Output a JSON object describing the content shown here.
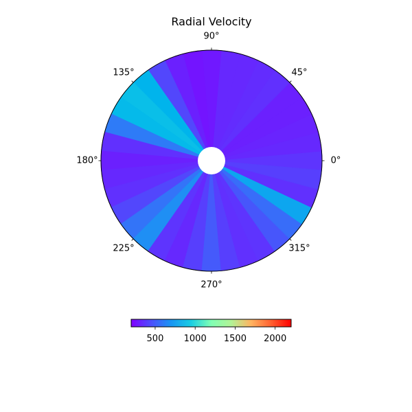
{
  "chart_data": {
    "type": "heatmap",
    "projection": "polar",
    "title": "Radial Velocity",
    "angle_tick_labels": [
      "0°",
      "45°",
      "90°",
      "135°",
      "180°",
      "225°",
      "270°",
      "315°"
    ],
    "angle_ticks_deg": [
      0,
      45,
      90,
      135,
      180,
      225,
      270,
      315
    ],
    "inner_hole": true,
    "grid": false,
    "colormap": "rainbow",
    "colorbar": {
      "orientation": "horizontal",
      "placement": "bottom",
      "vmin": 200,
      "vmax": 2200,
      "tick_values": [
        500,
        1000,
        1500,
        2000
      ],
      "tick_labels": [
        "500",
        "1000",
        "1500",
        "2000"
      ]
    },
    "sectors": {
      "theta_deg": [
        0,
        10,
        20,
        30,
        40,
        50,
        60,
        70,
        80,
        90,
        100,
        110,
        120,
        130,
        140,
        150,
        160,
        170,
        180,
        190,
        200,
        210,
        220,
        230,
        240,
        250,
        260,
        270,
        280,
        290,
        300,
        310,
        320,
        330,
        340,
        350
      ],
      "value": [
        330,
        300,
        290,
        280,
        280,
        320,
        310,
        300,
        300,
        260,
        250,
        280,
        380,
        700,
        740,
        720,
        520,
        320,
        280,
        300,
        320,
        380,
        500,
        580,
        330,
        300,
        360,
        430,
        360,
        320,
        330,
        420,
        480,
        650,
        320,
        360
      ]
    }
  }
}
